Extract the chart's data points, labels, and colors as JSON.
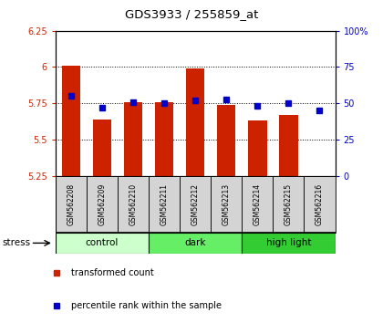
{
  "title": "GDS3933 / 255859_at",
  "samples": [
    "GSM562208",
    "GSM562209",
    "GSM562210",
    "GSM562211",
    "GSM562212",
    "GSM562213",
    "GSM562214",
    "GSM562215",
    "GSM562216"
  ],
  "transformed_counts": [
    6.01,
    5.64,
    5.76,
    5.76,
    5.99,
    5.74,
    5.63,
    5.67,
    5.25
  ],
  "percentile_ranks": [
    55,
    47,
    51,
    50,
    52,
    53,
    48,
    50,
    45
  ],
  "ylim_left": [
    5.25,
    6.25
  ],
  "ylim_right": [
    0,
    100
  ],
  "yticks_left": [
    5.25,
    5.5,
    5.75,
    6.0,
    6.25
  ],
  "yticks_right": [
    0,
    25,
    50,
    75,
    100
  ],
  "ytick_labels_left": [
    "5.25",
    "5.5",
    "5.75",
    "6",
    "6.25"
  ],
  "ytick_labels_right": [
    "0",
    "25",
    "50",
    "75",
    "100%"
  ],
  "hlines": [
    5.5,
    5.75,
    6.0
  ],
  "bar_color": "#cc2200",
  "dot_color": "#0000cc",
  "groups": [
    {
      "label": "control",
      "start": 0,
      "end": 3,
      "color": "#ccffcc"
    },
    {
      "label": "dark",
      "start": 3,
      "end": 6,
      "color": "#66ee66"
    },
    {
      "label": "high light",
      "start": 6,
      "end": 9,
      "color": "#33cc33"
    }
  ],
  "stress_label": "stress",
  "legend_items": [
    {
      "color": "#cc2200",
      "label": "transformed count"
    },
    {
      "color": "#0000cc",
      "label": "percentile rank within the sample"
    }
  ],
  "bar_width": 0.6,
  "baseline": 5.25
}
